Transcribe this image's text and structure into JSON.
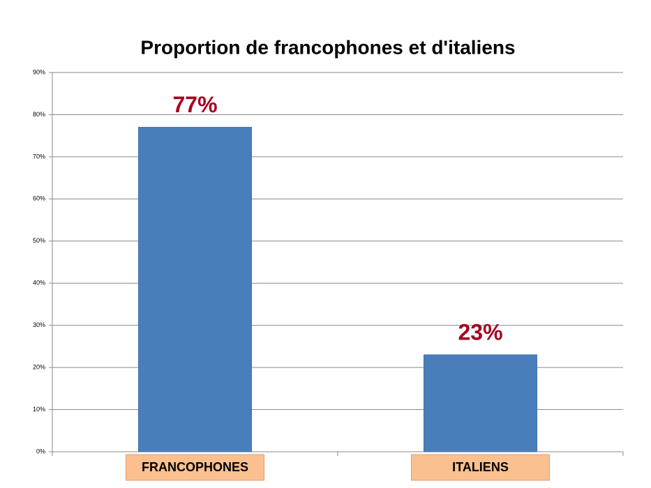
{
  "chart_data": {
    "type": "bar",
    "title": "Proportion de francophones et d'italiens",
    "categories": [
      "FRANCOPHONES",
      "ITALIENS"
    ],
    "values": [
      77,
      23
    ],
    "value_labels": [
      "77%",
      "23%"
    ],
    "color": "#4a7ebb",
    "label_color": "#a50021",
    "category_box_color": "#fac090",
    "ylim": [
      0,
      90
    ],
    "yticks": [
      {
        "value": 0,
        "label": "0%"
      },
      {
        "value": 10,
        "label": "10%"
      },
      {
        "value": 20,
        "label": "20%"
      },
      {
        "value": 30,
        "label": "30%"
      },
      {
        "value": 40,
        "label": "40%"
      },
      {
        "value": 50,
        "label": "50%"
      },
      {
        "value": 60,
        "label": "60%"
      },
      {
        "value": 70,
        "label": "70%"
      },
      {
        "value": 80,
        "label": "80%"
      },
      {
        "value": 90,
        "label": "90%"
      }
    ],
    "grid": true
  }
}
